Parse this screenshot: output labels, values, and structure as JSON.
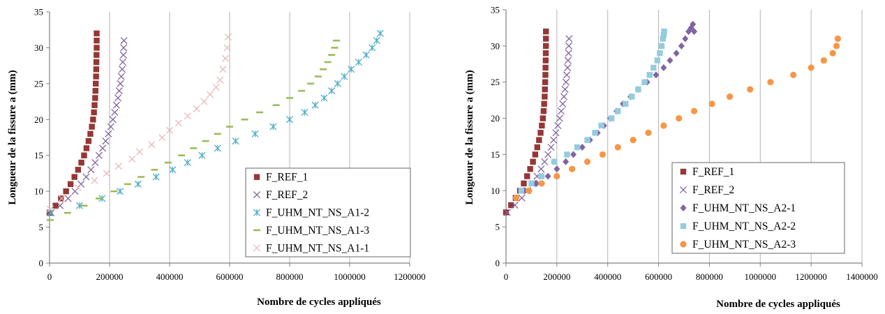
{
  "chart_data": [
    {
      "type": "scatter",
      "xlabel": "Nombre de cycles appliqués",
      "ylabel": "Longueur de la fissure a (mm)",
      "xlim": [
        0,
        1200000
      ],
      "ylim": [
        0,
        35
      ],
      "xticks": [
        0,
        200000,
        400000,
        600000,
        800000,
        1000000,
        1200000
      ],
      "yticks": [
        0,
        5,
        10,
        15,
        20,
        25,
        30,
        35
      ],
      "x_tick_labels": [
        "0",
        "200000",
        "400000",
        "600000",
        "800000",
        "1000000",
        "1200000"
      ],
      "y_tick_labels": [
        "0",
        "5",
        "10",
        "15",
        "20",
        "25",
        "30",
        "35"
      ],
      "grid": "vertical",
      "legend_position": "bottom-right",
      "series": [
        {
          "name": "F_REF_1",
          "marker": "square",
          "color": "#953735",
          "x": [
            0,
            20000,
            38000,
            55000,
            70000,
            83000,
            95000,
            106000,
            115000,
            123000,
            130000,
            136000,
            141000,
            145000,
            148000,
            150000,
            152000,
            153000,
            154000,
            155000,
            155500,
            156000,
            156500,
            157000,
            157000,
            157000
          ],
          "y": [
            7,
            8,
            9,
            10,
            11,
            12,
            13,
            14,
            15,
            16,
            17,
            18,
            19,
            20,
            21,
            22,
            23,
            24,
            25,
            26,
            27,
            28,
            29,
            30,
            31,
            32
          ]
        },
        {
          "name": "F_REF_2",
          "marker": "x",
          "color": "#8064a2",
          "x": [
            5000,
            35000,
            62000,
            85000,
            105000,
            122000,
            138000,
            152000,
            165000,
            177000,
            187000,
            196000,
            204000,
            211000,
            217000,
            223000,
            228000,
            232000,
            236000,
            239000,
            242000,
            244000,
            246000,
            247000,
            248000
          ],
          "y": [
            7,
            8,
            9,
            10,
            11,
            12,
            13,
            14,
            15,
            16,
            17,
            18,
            19,
            20,
            21,
            22,
            23,
            24,
            25,
            26,
            27,
            28,
            29,
            30,
            31
          ]
        },
        {
          "name": "F_UHM_NT_NS_A1-2",
          "marker": "star",
          "color": "#4bacc6",
          "x": [
            2000,
            100000,
            175000,
            235000,
            295000,
            355000,
            410000,
            460000,
            508000,
            560000,
            620000,
            685000,
            745000,
            800000,
            850000,
            885000,
            915000,
            940000,
            960000,
            982000,
            1005000,
            1030000,
            1055000,
            1075000,
            1090000,
            1102000
          ],
          "y": [
            7,
            8,
            9,
            10,
            11,
            12,
            13,
            14,
            15,
            16,
            17,
            18,
            19,
            20,
            21,
            22,
            23,
            24,
            25,
            26,
            27,
            28,
            29,
            30,
            31,
            32
          ]
        },
        {
          "name": "F_UHM_NT_NS_A1-3",
          "marker": "dash",
          "color": "#9bbb59",
          "x": [
            2000,
            60000,
            115000,
            165000,
            215000,
            260000,
            305000,
            350000,
            395000,
            440000,
            480000,
            520000,
            560000,
            600000,
            650000,
            700000,
            755000,
            800000,
            840000,
            870000,
            895000,
            912000,
            927000,
            940000,
            950000,
            956000
          ],
          "y": [
            6,
            7,
            8,
            9,
            10,
            11,
            12,
            13,
            14,
            15,
            16,
            17,
            18,
            19,
            20,
            21,
            22,
            23,
            24,
            25,
            26,
            27,
            28,
            29,
            30,
            31
          ]
        },
        {
          "name": "F_UHM_NT_NS_A1-1",
          "marker": "x",
          "color": "#e6b9b8",
          "x": [
            2000,
            40000,
            95000,
            150000,
            190000,
            230000,
            275000,
            300000,
            340000,
            375000,
            400000,
            430000,
            460000,
            490000,
            515000,
            535000,
            555000,
            568000,
            578000,
            586000,
            592000,
            595000
          ],
          "y": [
            7.5,
            9,
            10.5,
            11.5,
            12.5,
            13.5,
            14.5,
            15.5,
            16.5,
            17.5,
            18.5,
            19.5,
            20.5,
            21.5,
            22.5,
            23.5,
            24.5,
            25.5,
            27,
            28.5,
            30,
            31.5
          ]
        }
      ]
    },
    {
      "type": "scatter",
      "xlabel": "Nombre de cycles appliqués",
      "ylabel": "Longueur de la fissure a (mm)",
      "xlim": [
        0,
        1400000
      ],
      "ylim": [
        0,
        35
      ],
      "xticks": [
        0,
        200000,
        400000,
        600000,
        800000,
        1000000,
        1200000,
        1400000
      ],
      "yticks": [
        0,
        5,
        10,
        15,
        20,
        25,
        30,
        35
      ],
      "x_tick_labels": [
        "0",
        "200000",
        "400000",
        "600000",
        "800000",
        "1000000",
        "1200000",
        "1400000"
      ],
      "y_tick_labels": [
        "0",
        "5",
        "10",
        "15",
        "20",
        "25",
        "30",
        "35"
      ],
      "grid": "vertical",
      "legend_position": "bottom-right",
      "series": [
        {
          "name": "F_REF_1",
          "marker": "square",
          "color": "#953735",
          "x": [
            0,
            20000,
            38000,
            55000,
            70000,
            83000,
            95000,
            106000,
            115000,
            123000,
            130000,
            136000,
            141000,
            145000,
            148000,
            150000,
            152000,
            153000,
            154000,
            155000,
            155500,
            156000,
            156500,
            157000,
            157000,
            157000
          ],
          "y": [
            7,
            8,
            9,
            10,
            11,
            12,
            13,
            14,
            15,
            16,
            17,
            18,
            19,
            20,
            21,
            22,
            23,
            24,
            25,
            26,
            27,
            28,
            29,
            30,
            31,
            32
          ]
        },
        {
          "name": "F_REF_2",
          "marker": "x",
          "color": "#8064a2",
          "x": [
            5000,
            35000,
            62000,
            85000,
            105000,
            122000,
            138000,
            152000,
            165000,
            177000,
            187000,
            196000,
            204000,
            211000,
            217000,
            223000,
            228000,
            232000,
            236000,
            239000,
            242000,
            244000,
            246000,
            247000,
            248000
          ],
          "y": [
            7,
            8,
            9,
            10,
            11,
            12,
            13,
            14,
            15,
            16,
            17,
            18,
            19,
            20,
            21,
            22,
            23,
            24,
            25,
            26,
            27,
            28,
            29,
            30,
            31
          ]
        },
        {
          "name": "F_UHM_NT_NS_A2-1",
          "marker": "diamond",
          "color": "#8064a2",
          "x": [
            70000,
            120000,
            165000,
            200000,
            235000,
            265000,
            300000,
            330000,
            360000,
            385000,
            410000,
            435000,
            460000,
            490000,
            520000,
            555000,
            590000,
            620000,
            645000,
            670000,
            690000,
            705000,
            718000,
            728000,
            735000,
            740000
          ],
          "y": [
            10,
            11,
            12,
            13,
            14,
            15,
            16,
            17,
            18,
            19,
            20,
            21,
            22,
            23,
            24,
            25,
            26,
            27,
            28,
            29,
            30,
            31,
            32,
            32.5,
            33,
            32
          ]
        },
        {
          "name": "F_UHM_NT_NS_A2-2",
          "marker": "square",
          "color": "#93cddd",
          "x": [
            60000,
            100000,
            140000,
            190000,
            240000,
            280000,
            320000,
            350000,
            375000,
            415000,
            440000,
            470000,
            495000,
            520000,
            545000,
            565000,
            580000,
            595000,
            605000,
            612000,
            617000,
            620000,
            622000
          ],
          "y": [
            10,
            11,
            12,
            14,
            15,
            16,
            17,
            18,
            19,
            20,
            21,
            22,
            23,
            24,
            25,
            26,
            27,
            28,
            29,
            30,
            31,
            31.5,
            32
          ]
        },
        {
          "name": "F_UHM_NT_NS_A2-3",
          "marker": "circle",
          "color": "#f79646",
          "x": [
            40000,
            90000,
            140000,
            200000,
            260000,
            320000,
            380000,
            440000,
            500000,
            560000,
            620000,
            680000,
            740000,
            810000,
            880000,
            960000,
            1040000,
            1130000,
            1200000,
            1250000,
            1285000,
            1300000,
            1305000
          ],
          "y": [
            9,
            10,
            11,
            12,
            13,
            14,
            15,
            16,
            17,
            18,
            19,
            20,
            21,
            22,
            23,
            24,
            25,
            26,
            27,
            28,
            29,
            30,
            31
          ]
        }
      ]
    }
  ]
}
